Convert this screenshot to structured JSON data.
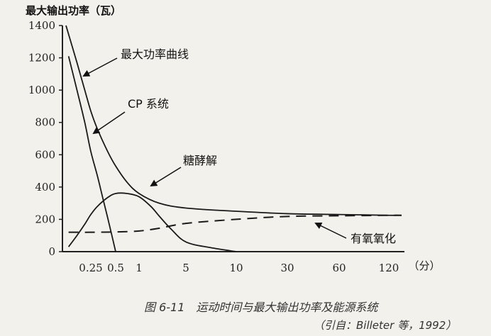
{
  "caption": "图 6-11　运动时间与最大输出功率及能源系统",
  "source": "（引自：Billeter 等，1992）",
  "chart_data": {
    "type": "line",
    "title": "",
    "ylabel": "最大输出功率（瓦）",
    "xlabel": "（分）",
    "ylim": [
      0,
      1400
    ],
    "yticks": [
      0,
      200,
      400,
      600,
      800,
      1000,
      1200,
      1400
    ],
    "xticks": [
      0.25,
      0.5,
      1,
      5,
      10,
      30,
      60,
      120
    ],
    "xtick_labels": [
      "0.25",
      "0.5",
      "1",
      "5",
      "10",
      "30",
      "60",
      "120"
    ],
    "x_scale": "log",
    "grid": false,
    "series": [
      {
        "name": "最大功率曲线",
        "style": "solid",
        "x": [
          0.1,
          0.15,
          0.2,
          0.25,
          0.3,
          0.4,
          0.5,
          0.7,
          1,
          2,
          5,
          10,
          30,
          60,
          120,
          180
        ],
        "y": [
          1400,
          1170,
          1000,
          870,
          760,
          620,
          530,
          430,
          360,
          300,
          270,
          250,
          235,
          230,
          225,
          225
        ]
      },
      {
        "name": "CP 系统",
        "style": "solid",
        "x": [
          0.11,
          0.15,
          0.2,
          0.25,
          0.3,
          0.35,
          0.4,
          0.45,
          0.5
        ],
        "y": [
          1210,
          1000,
          800,
          620,
          470,
          330,
          210,
          100,
          0
        ]
      },
      {
        "name": "糖酵解",
        "style": "solid",
        "x": [
          0.11,
          0.15,
          0.2,
          0.25,
          0.3,
          0.4,
          0.5,
          0.7,
          1,
          1.5,
          2,
          3,
          5,
          7,
          10
        ],
        "y": [
          30,
          100,
          170,
          230,
          280,
          335,
          360,
          360,
          340,
          280,
          220,
          140,
          60,
          25,
          0
        ]
      },
      {
        "name": "有氧氧化",
        "style": "dashed",
        "x": [
          0.11,
          0.25,
          0.5,
          1,
          2,
          5,
          10,
          30,
          60,
          120,
          180
        ],
        "y": [
          120,
          120,
          122,
          128,
          145,
          175,
          200,
          218,
          222,
          225,
          225
        ]
      }
    ],
    "annotations": [
      "最大功率曲线",
      "CP 系统",
      "糖酵解",
      "有氧氧化"
    ]
  }
}
